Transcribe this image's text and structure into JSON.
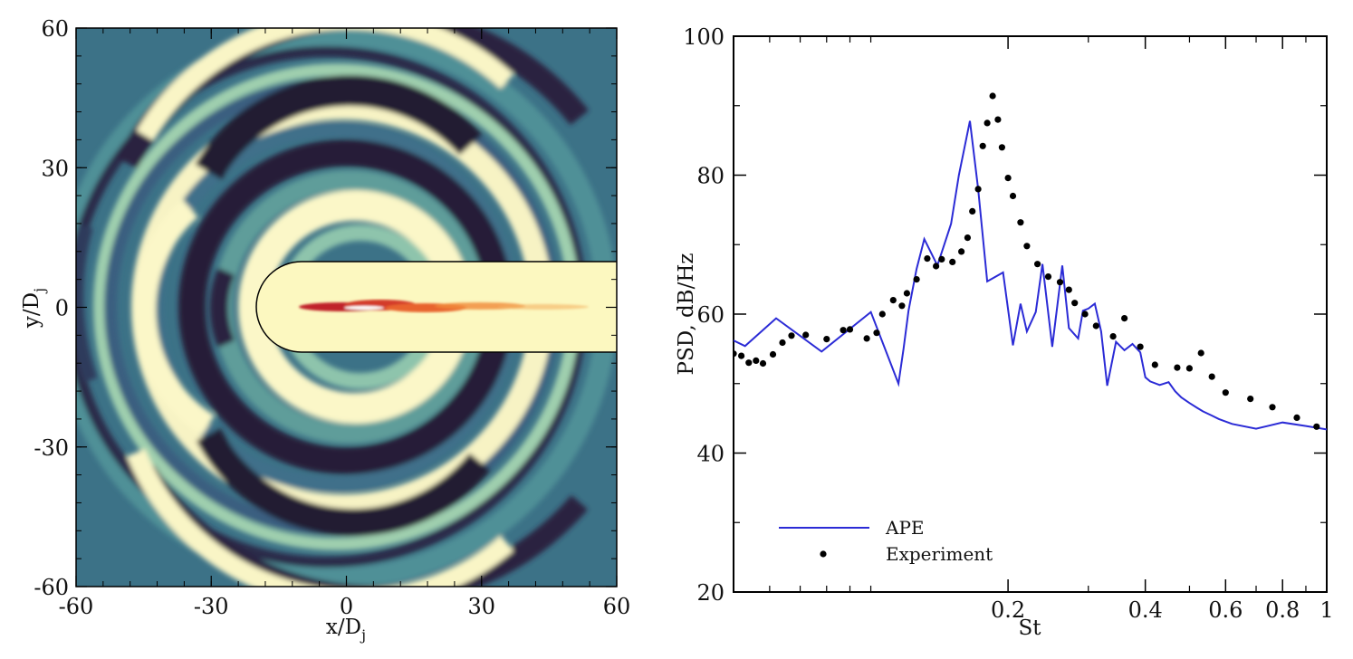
{
  "chart_data": [
    {
      "type": "heatmap",
      "xlabel": "x/D",
      "xlabel_sub": "j",
      "ylabel": "y/D",
      "ylabel_sub": "j",
      "xlim": [
        -60,
        60
      ],
      "ylim": [
        -60,
        60
      ],
      "x_ticks": [
        -60,
        -30,
        0,
        30,
        60
      ],
      "y_ticks": [
        -60,
        -30,
        0,
        30,
        60
      ],
      "x_tick_labels": [
        "-60",
        "-30",
        "0",
        "30",
        "60"
      ],
      "y_tick_labels": [
        "-60",
        "-30",
        "0",
        "30",
        "60"
      ],
      "colors": {
        "dark": "#2a1f3d",
        "mid": "#3f7f8f",
        "light": "#fcf8c4",
        "jet_red": "#d7301f",
        "jet_orange": "#f0833a"
      },
      "inset_region": {
        "x_start": -20,
        "x_end": 60,
        "y_min": -10,
        "y_max": 10
      }
    },
    {
      "type": "line",
      "xlabel": "St",
      "ylabel": "PSD, dB/Hz",
      "x_scale": "log",
      "xlim": [
        0.05,
        1.0
      ],
      "ylim": [
        20,
        100
      ],
      "x_ticks": [
        0.2,
        0.4,
        0.6,
        0.8,
        1
      ],
      "x_tick_labels": [
        "0.2",
        "0.4",
        "0.6",
        "0.8",
        "1"
      ],
      "y_ticks": [
        20,
        40,
        60,
        80,
        100
      ],
      "y_tick_labels": [
        "20",
        "40",
        "60",
        "80",
        "100"
      ],
      "legend_position": "bottom-left",
      "series": [
        {
          "name": "APE",
          "style": "line",
          "color": "#2b2bd6",
          "x": [
            0.05,
            0.053,
            0.062,
            0.078,
            0.1,
            0.115,
            0.118,
            0.121,
            0.126,
            0.131,
            0.14,
            0.15,
            0.156,
            0.165,
            0.172,
            0.18,
            0.195,
            0.205,
            0.213,
            0.22,
            0.23,
            0.238,
            0.25,
            0.263,
            0.272,
            0.285,
            0.292,
            0.3,
            0.31,
            0.32,
            0.33,
            0.345,
            0.36,
            0.375,
            0.39,
            0.4,
            0.41,
            0.43,
            0.45,
            0.465,
            0.48,
            0.5,
            0.52,
            0.535,
            0.56,
            0.58,
            0.62,
            0.7,
            0.8,
            0.9,
            1.0
          ],
          "values": [
            56.2,
            55.4,
            59.4,
            54.6,
            60.3,
            50.0,
            55.0,
            60.5,
            66.5,
            70.8,
            67.0,
            73.0,
            80.0,
            87.8,
            78.0,
            64.7,
            66.0,
            55.5,
            61.5,
            57.5,
            60.3,
            67.2,
            55.3,
            67.0,
            58.0,
            56.5,
            60.5,
            60.8,
            61.5,
            57.5,
            49.7,
            56.0,
            54.8,
            55.7,
            54.5,
            50.9,
            50.3,
            49.8,
            50.2,
            48.9,
            48.0,
            47.2,
            46.5,
            46.0,
            45.4,
            44.9,
            44.2,
            43.5,
            44.4,
            43.9,
            43.4
          ]
        },
        {
          "name": "Experiment",
          "style": "markers",
          "color": "#000000",
          "x": [
            0.05,
            0.052,
            0.054,
            0.056,
            0.058,
            0.061,
            0.064,
            0.067,
            0.072,
            0.08,
            0.087,
            0.09,
            0.098,
            0.103,
            0.106,
            0.112,
            0.117,
            0.12,
            0.126,
            0.133,
            0.139,
            0.143,
            0.151,
            0.158,
            0.163,
            0.167,
            0.172,
            0.176,
            0.18,
            0.185,
            0.19,
            0.194,
            0.2,
            0.205,
            0.213,
            0.22,
            0.232,
            0.245,
            0.26,
            0.272,
            0.28,
            0.295,
            0.312,
            0.34,
            0.36,
            0.39,
            0.42,
            0.47,
            0.5,
            0.53,
            0.56,
            0.6,
            0.68,
            0.76,
            0.86,
            0.95
          ],
          "values": [
            54.3,
            54.0,
            53.0,
            53.3,
            52.9,
            54.2,
            55.9,
            56.9,
            57.0,
            56.4,
            57.7,
            57.8,
            56.5,
            57.3,
            60.0,
            62.0,
            61.2,
            63.0,
            65.0,
            68.0,
            66.9,
            67.9,
            67.5,
            69.0,
            71.0,
            74.8,
            78.0,
            84.2,
            87.5,
            91.4,
            88.0,
            84.0,
            79.6,
            77.0,
            73.2,
            69.8,
            67.2,
            65.4,
            64.6,
            63.5,
            61.6,
            60.0,
            58.3,
            56.8,
            59.4,
            55.3,
            52.7,
            52.3,
            52.2,
            54.4,
            51.0,
            48.7,
            47.8,
            46.6,
            45.1,
            43.8
          ]
        }
      ]
    }
  ]
}
